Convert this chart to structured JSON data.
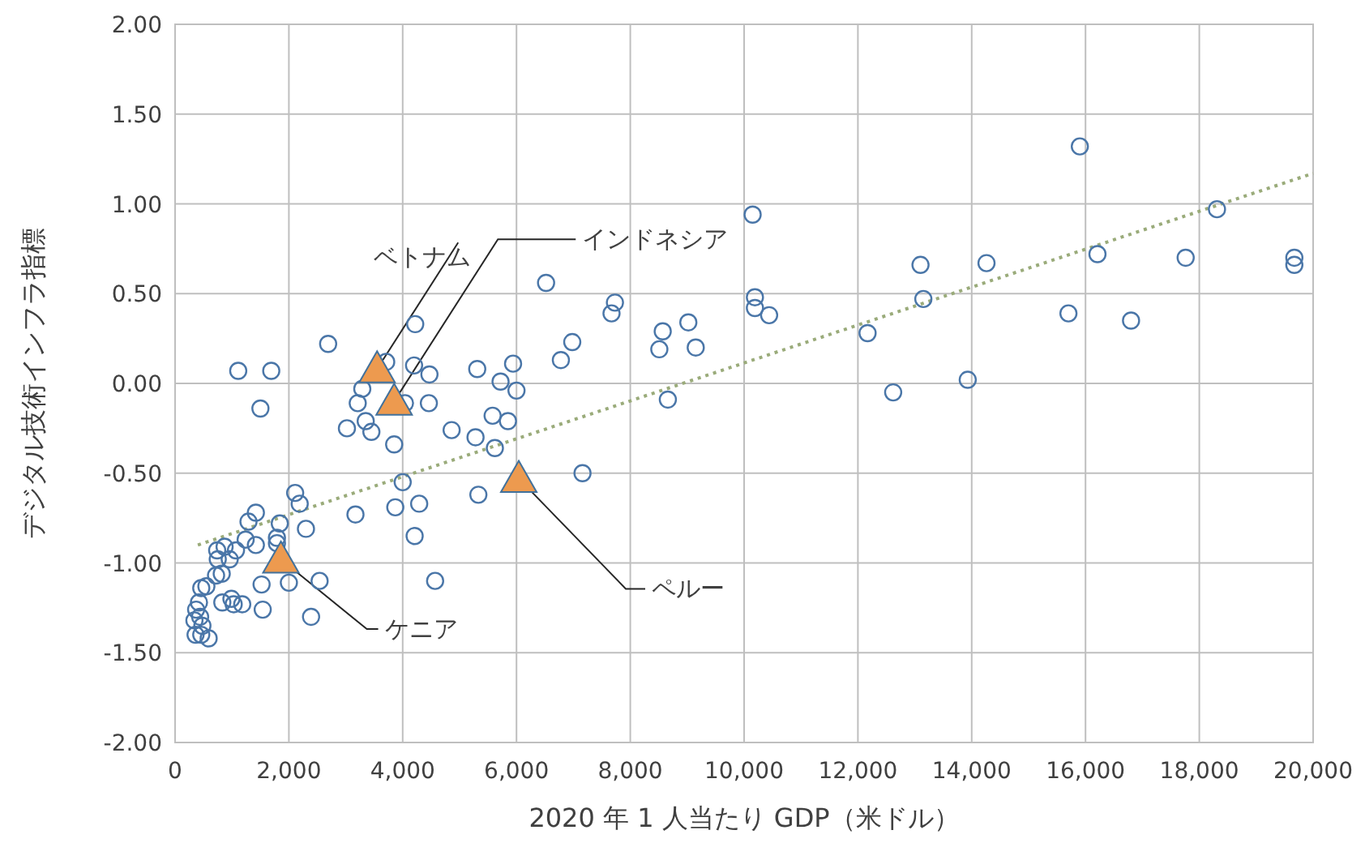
{
  "chart_data": {
    "type": "scatter",
    "xlabel": "2020 年 1 人当たり GDP（米ドル）",
    "ylabel": "デジタル技術インフラ指標",
    "xlim": [
      0,
      20000
    ],
    "xticks": [
      {
        "value": 0,
        "label": "0"
      },
      {
        "value": 2000,
        "label": "2,000"
      },
      {
        "value": 4000,
        "label": "4,000"
      },
      {
        "value": 6000,
        "label": "6,000"
      },
      {
        "value": 8000,
        "label": "8,000"
      },
      {
        "value": 10000,
        "label": "10,000"
      },
      {
        "value": 12000,
        "label": "12,000"
      },
      {
        "value": 14000,
        "label": "14,000"
      },
      {
        "value": 16000,
        "label": "16,000"
      },
      {
        "value": 18000,
        "label": "18,000"
      },
      {
        "value": 20000,
        "label": "20,000"
      }
    ],
    "ylim": [
      -2,
      2
    ],
    "yticks": [
      {
        "value": -2,
        "label": "-2.00"
      },
      {
        "value": -1.5,
        "label": "-1.50"
      },
      {
        "value": -1,
        "label": "-1.00"
      },
      {
        "value": -0.5,
        "label": "-0.50"
      },
      {
        "value": 0,
        "label": "0.00"
      },
      {
        "value": 0.5,
        "label": "0.50"
      },
      {
        "value": 1,
        "label": "1.00"
      },
      {
        "value": 1.5,
        "label": "1.50"
      },
      {
        "value": 2,
        "label": "2.00"
      }
    ],
    "grid": true,
    "series": [
      {
        "type": "scatter",
        "marker": "circle",
        "color": "#4a76a8",
        "x": [
          15900,
          10150,
          18310,
          16210,
          17760,
          19670,
          19670,
          13100,
          14260,
          13150,
          10190,
          10190,
          10440,
          15700,
          16800,
          12170,
          12620,
          13930,
          8570,
          9020,
          8510,
          9150,
          8660,
          6520,
          7730,
          7670,
          6980,
          6780,
          5940,
          5720,
          6000,
          5580,
          5850,
          5620,
          7160,
          4220,
          2690,
          1690,
          1110,
          3710,
          4200,
          4470,
          5310,
          3290,
          3210,
          4040,
          4460,
          3350,
          3450,
          3020,
          3850,
          4860,
          5280,
          4000,
          2110,
          2190,
          5330,
          3870,
          4290,
          3170,
          1840,
          2300,
          4210,
          1790,
          1790,
          2540,
          2000,
          1520,
          4570,
          1500,
          1420,
          1290,
          1240,
          1420,
          1070,
          740,
          870,
          750,
          960,
          720,
          820,
          550,
          460,
          830,
          990,
          1030,
          1180,
          1540,
          2390,
          420,
          370,
          440,
          340,
          480,
          360,
          460,
          590
        ],
        "values": [
          1.32,
          0.94,
          0.97,
          0.72,
          0.7,
          0.7,
          0.66,
          0.66,
          0.67,
          0.47,
          0.48,
          0.42,
          0.38,
          0.39,
          0.35,
          0.28,
          -0.05,
          0.02,
          0.29,
          0.34,
          0.19,
          0.2,
          -0.09,
          0.56,
          0.45,
          0.39,
          0.23,
          0.13,
          0.11,
          0.01,
          -0.04,
          -0.18,
          -0.21,
          -0.36,
          -0.5,
          0.33,
          0.22,
          0.07,
          0.07,
          0.12,
          0.1,
          0.05,
          0.08,
          -0.03,
          -0.11,
          -0.11,
          -0.11,
          -0.21,
          -0.27,
          -0.25,
          -0.34,
          -0.26,
          -0.3,
          -0.55,
          -0.61,
          -0.67,
          -0.62,
          -0.69,
          -0.67,
          -0.73,
          -0.78,
          -0.81,
          -0.85,
          -0.86,
          -0.89,
          -1.1,
          -1.11,
          -1.12,
          -1.1,
          -0.14,
          -0.72,
          -0.77,
          -0.87,
          -0.9,
          -0.93,
          -0.93,
          -0.91,
          -0.98,
          -0.98,
          -1.07,
          -1.06,
          -1.13,
          -1.14,
          -1.22,
          -1.2,
          -1.23,
          -1.23,
          -1.26,
          -1.3,
          -1.22,
          -1.26,
          -1.3,
          -1.32,
          -1.35,
          -1.4,
          -1.4,
          -1.42
        ]
      },
      {
        "type": "scatter",
        "marker": "triangle",
        "color": "#ed9a4f",
        "x": [
          3550,
          3850,
          6040,
          1860
        ],
        "values": [
          0.08,
          -0.1,
          -0.53,
          -0.98
        ]
      },
      {
        "type": "line",
        "marker": "none",
        "line_style": "dotted",
        "color": "#9aab7a",
        "x": [
          400,
          20000
        ],
        "values": [
          -0.9,
          1.17
        ]
      }
    ],
    "annotations": [
      {
        "text": "ベトナム",
        "x": 3550,
        "y": 0.08
      },
      {
        "text": "インドネシア",
        "x": 3850,
        "y": -0.1
      },
      {
        "text": "ペルー",
        "x": 6040,
        "y": -0.53
      },
      {
        "text": "ケニア",
        "x": 1860,
        "y": -0.98
      }
    ]
  }
}
